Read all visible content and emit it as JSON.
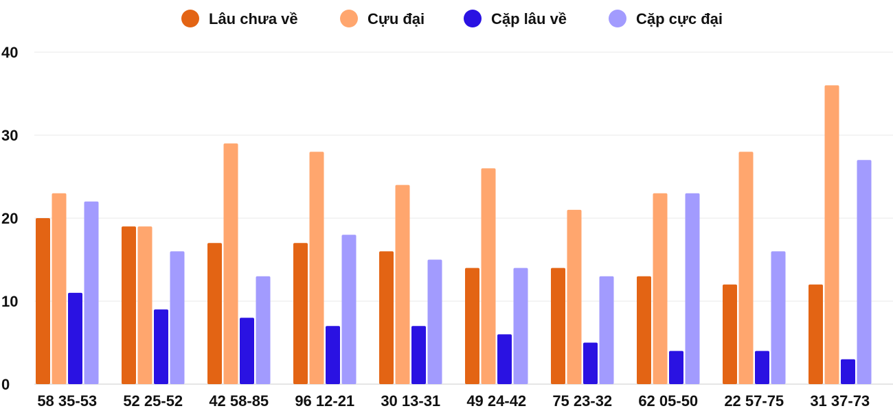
{
  "chart_data": {
    "type": "bar",
    "title": "",
    "xlabel": "",
    "ylabel": "",
    "ylim": [
      0,
      40
    ],
    "yticks": [
      0,
      10,
      20,
      30,
      40
    ],
    "grid": true,
    "legend_position": "top",
    "categories": [
      "58 35-53",
      "52 25-52",
      "42 58-85",
      "96 12-21",
      "30 13-31",
      "49 24-42",
      "75 23-32",
      "62 05-50",
      "22 57-75",
      "31 37-73"
    ],
    "series": [
      {
        "name": "Lâu chưa về",
        "color": "#e36414",
        "values": [
          20,
          19,
          17,
          17,
          16,
          14,
          14,
          13,
          12,
          12
        ]
      },
      {
        "name": "Cựu đại",
        "color": "#ffa66e",
        "values": [
          23,
          19,
          29,
          28,
          24,
          26,
          21,
          23,
          28,
          36
        ]
      },
      {
        "name": "Cặp lâu về",
        "color": "#2a12e2",
        "values": [
          11,
          9,
          8,
          7,
          7,
          6,
          5,
          4,
          4,
          3
        ]
      },
      {
        "name": "Cặp cực đại",
        "color": "#a29bfe",
        "values": [
          22,
          16,
          13,
          18,
          15,
          14,
          13,
          23,
          16,
          27
        ]
      }
    ]
  }
}
